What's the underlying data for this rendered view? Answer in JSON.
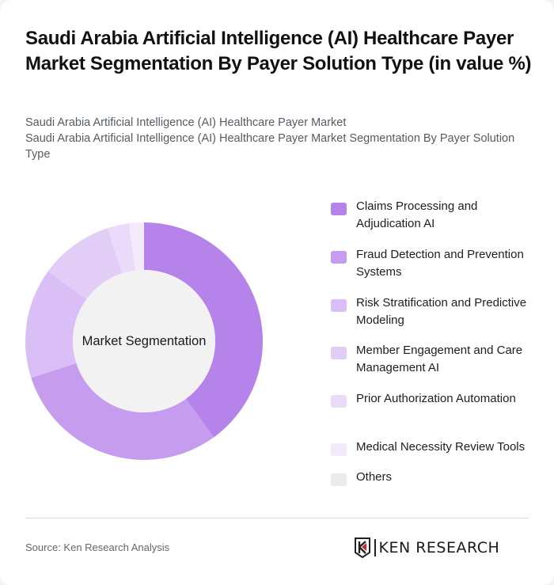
{
  "header": {
    "title": "Saudi Arabia Artificial Intelligence (AI) Healthcare Payer Market Segmentation By Payer Solution Type (in value %)",
    "subtitle_line1": "Saudi Arabia Artificial Intelligence (AI) Healthcare Payer Market",
    "subtitle_line2": "Saudi Arabia Artificial Intelligence (AI) Healthcare Payer Market Segmentation By Payer Solution Type"
  },
  "chart": {
    "center_label": "Market Segmentation"
  },
  "legend": {
    "items": [
      {
        "label": "Claims Processing and Adjudication AI",
        "color": "#B683EA"
      },
      {
        "label": "Fraud Detection and Prevention Systems",
        "color": "#C59CEE"
      },
      {
        "label": "Risk Stratification and Predictive Modeling",
        "color": "#D9BFF5"
      },
      {
        "label": "Member Engagement and Care Management AI",
        "color": "#E2CDF7"
      },
      {
        "label": "Prior Authorization Automation",
        "color": "#EADBFA"
      },
      {
        "label": "Medical Necessity Review Tools",
        "color": "#F3EBFC"
      },
      {
        "label": "Others",
        "color": "#EBEBEB"
      }
    ]
  },
  "footer": {
    "source": "Source: Ken Research Analysis",
    "logo_text": "KEN RESEARCH"
  },
  "chart_data": {
    "type": "pie",
    "subtype": "donut",
    "title": "Saudi Arabia Artificial Intelligence (AI) Healthcare Payer Market Segmentation By Payer Solution Type (in value %)",
    "center_label": "Market Segmentation",
    "categories": [
      "Claims Processing and Adjudication AI",
      "Fraud Detection and Prevention Systems",
      "Risk Stratification and Predictive Modeling",
      "Member Engagement and Care Management AI",
      "Prior Authorization Automation",
      "Medical Necessity Review Tools",
      "Others"
    ],
    "values": [
      40,
      30,
      15,
      10,
      3,
      2,
      0
    ],
    "colors": [
      "#B683EA",
      "#C59CEE",
      "#D9BFF5",
      "#E2CDF7",
      "#EADBFA",
      "#F3EBFC",
      "#EBEBEB"
    ],
    "unit": "%",
    "legend_position": "right",
    "start_angle": "12 o'clock, clockwise"
  }
}
